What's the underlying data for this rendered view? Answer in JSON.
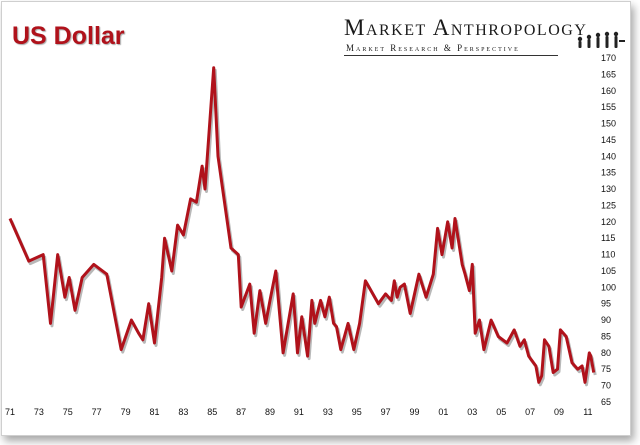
{
  "header": {
    "title": "US Dollar"
  },
  "logo": {
    "name": "Market Anthropology",
    "tagline": "Market Research & Perspective"
  },
  "chart_data": {
    "type": "line",
    "color": "#b0121b",
    "ylim": [
      65,
      170
    ],
    "yticks": [
      65,
      70,
      75,
      80,
      85,
      90,
      95,
      100,
      105,
      110,
      115,
      120,
      125,
      130,
      135,
      140,
      145,
      150,
      155,
      160,
      165,
      170
    ],
    "xlim": [
      1971,
      2011.7
    ],
    "xtick_labels": [
      "71",
      "73",
      "75",
      "77",
      "79",
      "81",
      "83",
      "85",
      "87",
      "89",
      "91",
      "93",
      "95",
      "97",
      "99",
      "01",
      "03",
      "05",
      "07",
      "09",
      "11"
    ],
    "xtick_values": [
      1971,
      1973,
      1975,
      1977,
      1979,
      1981,
      1983,
      1985,
      1987,
      1989,
      1991,
      1993,
      1995,
      1997,
      1999,
      2001,
      2003,
      2005,
      2007,
      2009,
      2011
    ],
    "series": [
      {
        "x": [
          1971.0,
          1972.3,
          1973.3,
          1973.8,
          1974.3,
          1974.8,
          1975.1,
          1975.5,
          1976.0,
          1976.8,
          1977.7,
          1978.7,
          1979.4,
          1979.9,
          1980.2,
          1980.6,
          1981.0,
          1981.5,
          1981.7,
          1982.2,
          1982.6,
          1983.0,
          1983.5,
          1983.9,
          1984.3,
          1984.5,
          1985.1,
          1985.4,
          1986.3,
          1986.8,
          1987.0,
          1987.6,
          1987.9,
          1988.3,
          1988.7,
          1989.0,
          1989.4,
          1989.9,
          1990.6,
          1990.9,
          1991.2,
          1991.6,
          1991.9,
          1992.1,
          1992.5,
          1992.8,
          1993.1,
          1993.4,
          1993.6,
          1993.9,
          1994.4,
          1994.8,
          1995.2,
          1995.6,
          1996.5,
          1997.0,
          1997.4,
          1997.6,
          1997.8,
          1998.0,
          1998.3,
          1998.7,
          1999.3,
          1999.8,
          2000.3,
          2000.6,
          2000.9,
          2001.3,
          2001.6,
          2001.8,
          2002.3,
          2002.5,
          2002.8,
          2003.0,
          2003.2,
          2003.5,
          2003.8,
          2004.3,
          2004.8,
          2005.4,
          2005.9,
          2006.3,
          2006.6,
          2006.9,
          2007.4,
          2007.6,
          2007.8,
          2008.0,
          2008.3,
          2008.6,
          2008.9,
          2009.1,
          2009.5,
          2009.9,
          2010.3,
          2010.6,
          2010.8,
          2011.1,
          2011.2,
          2011.4
        ],
        "y": [
          121,
          108,
          110,
          89,
          110,
          97,
          103,
          93,
          103,
          107,
          104,
          81,
          90,
          86,
          84,
          95,
          83,
          103,
          115,
          105,
          119,
          116,
          127,
          126,
          137,
          130,
          167,
          140,
          112,
          110,
          94,
          101,
          86,
          99,
          89,
          96,
          105,
          80,
          98,
          80,
          91,
          79,
          96,
          89,
          96,
          91,
          97,
          89,
          88,
          81,
          89,
          81,
          89,
          102,
          95,
          98,
          96,
          102,
          97,
          100,
          101,
          92,
          104,
          97,
          104,
          118,
          110,
          120,
          112,
          121,
          107,
          104,
          99,
          107,
          86,
          90,
          81,
          90,
          85,
          83,
          87,
          82,
          84,
          79,
          76,
          71,
          73,
          84,
          82,
          74,
          75,
          87,
          85,
          77,
          75,
          76,
          71,
          80,
          79,
          74
        ]
      }
    ]
  }
}
